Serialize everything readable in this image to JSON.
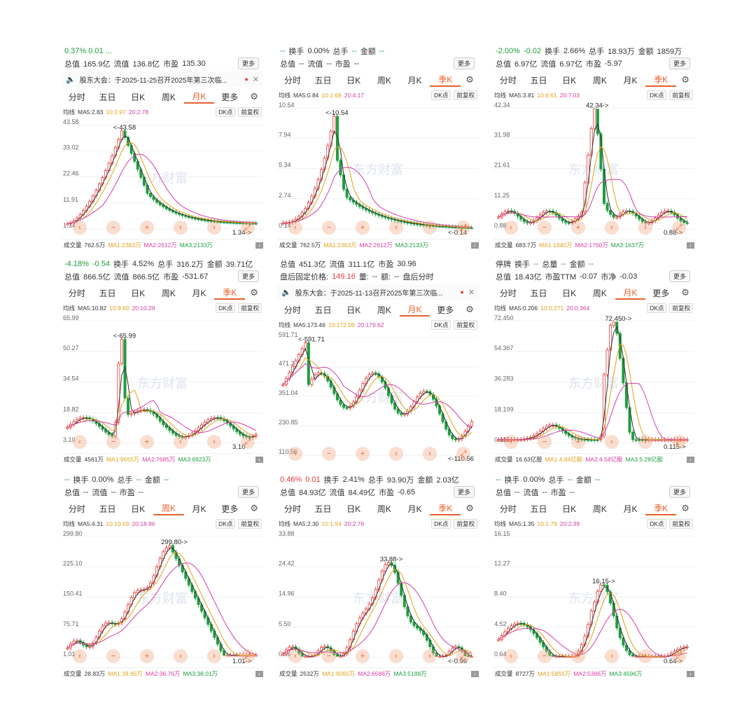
{
  "common": {
    "more": "更多",
    "dk": "DK点",
    "adjust": "前复权",
    "ma_label": "均线",
    "vol_label": "成交量",
    "watermark": "东方财富",
    "tabs": [
      "分时",
      "五日",
      "日K",
      "周K",
      "月K",
      "季K",
      "更多"
    ]
  },
  "panels": [
    {
      "row1": "0.37%  0.01  ...",
      "row2": [
        "总值",
        "165.9亿",
        "流值",
        "136.8亿",
        "市盈",
        "135.30"
      ],
      "notice": "股东大会：于2025-11-25召开2025年第三次临...",
      "tabs": [
        "分时",
        "五日",
        "日K",
        "周K",
        "月K",
        "更多"
      ],
      "active_tab": "月K",
      "ma": [
        "MA5:2.83",
        "10:2.97",
        "20:2.78"
      ],
      "y": [
        "43.58",
        "33.02",
        "22.46",
        "11.91",
        "1.34"
      ],
      "high": "<-43.58",
      "low": "1.34->",
      "vol": [
        "762.5万",
        "MA1:2363万",
        "MA2:2612万",
        "MA3:2133万"
      ],
      "vol_show": false
    },
    {
      "row1": [
        "--",
        "换手",
        "0.00%",
        "总手",
        "--",
        "金额",
        "--"
      ],
      "row2": [
        "总值",
        "--",
        "流值",
        "--",
        "市盈",
        "--"
      ],
      "tabs": [
        "分时",
        "五日",
        "日K",
        "周K",
        "月K",
        "季K"
      ],
      "active_tab": "季K",
      "ma": [
        "MA5:0.84",
        "10:1.69",
        "20:4.17"
      ],
      "y": [
        "10.54",
        "7.94",
        "5.34",
        "2.74",
        "0.14"
      ],
      "high": "<-10.54",
      "low": "<-0.14",
      "vol": [
        "762.5万",
        "MA1:2363万",
        "MA2:2612万",
        "MA3:2133万"
      ]
    },
    {
      "row1": [
        "-2.00%",
        "-0.02",
        "换手",
        "2.66%",
        "总手",
        "18.93万",
        "金额",
        "1859万"
      ],
      "row2": [
        "总值",
        "6.97亿",
        "流值",
        "6.97亿",
        "市盈",
        "-5.97"
      ],
      "tabs": [
        "分时",
        "五日",
        "日K",
        "周K",
        "月K",
        "季K"
      ],
      "active_tab": "季K",
      "ma": [
        "MA5:3.81",
        "10:6.61",
        "20:7.03"
      ],
      "y": [
        "42.34",
        "31.98",
        "21.61",
        "11.25",
        "0.88"
      ],
      "high": "42.34->",
      "low": "0.88->",
      "vol": [
        "683.7万",
        "MA1:1840万",
        "MA2:1760万",
        "MA3:1637万"
      ]
    },
    {
      "row1": [
        "-4.18%",
        "-0.54",
        "换手",
        "4.52%",
        "总手",
        "316.2万",
        "金额",
        "39.71亿"
      ],
      "row2": [
        "总值",
        "866.5亿",
        "流值",
        "866.5亿",
        "市盈",
        "-531.67"
      ],
      "tabs": [
        "分时",
        "五日",
        "日K",
        "周K",
        "月K",
        "季K"
      ],
      "active_tab": "季K",
      "ma": [
        "MA5:10.82",
        "10:9.69",
        "20:10.28"
      ],
      "y": [
        "65.99",
        "50.27",
        "34.54",
        "18.82",
        "3.10"
      ],
      "high": "<-65.99",
      "low": "3.10",
      "vol": [
        "4561万",
        "MA1:9655万",
        "MA2:7685万",
        "MA3:6923万"
      ]
    },
    {
      "row1": [
        "总值",
        "451.3亿",
        "流值",
        "311.1亿",
        "市盈",
        "30.96"
      ],
      "row2": [
        "盘后固定价格:",
        "149.16",
        "量:",
        "--",
        "额:",
        "--",
        "盘后分时"
      ],
      "notice": "股东大会：于2025-11-13召开2025年第三次临...",
      "tabs": [
        "分时",
        "五日",
        "日K",
        "周K",
        "月K",
        "更多"
      ],
      "active_tab": "月K",
      "ma": [
        "MA5:173.46",
        "10:172.09",
        "20:179.62"
      ],
      "y": [
        "591.71",
        "471.38",
        "351.04",
        "230.85",
        "110.56"
      ],
      "high": "<-591.71",
      "low": "<-110.56",
      "vol": []
    },
    {
      "row1": [
        "停牌",
        "换手",
        "--",
        "总量",
        "--",
        "金额",
        "--"
      ],
      "row2": [
        "总值",
        "18.43亿",
        "市盈TTM",
        "-0.07",
        "市净",
        "-0.03"
      ],
      "tabs": [
        "分时",
        "五日",
        "日K",
        "周K",
        "月K",
        "更多"
      ],
      "active_tab": "月K",
      "ma": [
        "MA5:0.206",
        "10:0.271",
        "20:0.364"
      ],
      "y": [
        "72.450",
        "54.367",
        "36.283",
        "18.199",
        "0.115"
      ],
      "high": "72.450->",
      "low": "0.115->",
      "vol": [
        "16.63亿股",
        "MA1:4.84亿股",
        "MA2:4.58亿股",
        "MA3:5.28亿股"
      ]
    },
    {
      "row1": [
        "--",
        "换手",
        "0.00%",
        "总手",
        "--",
        "金额",
        "--"
      ],
      "row2": [
        "总值",
        "--",
        "流值",
        "--",
        "市盈",
        "--"
      ],
      "tabs": [
        "分时",
        "五日",
        "日K",
        "周K",
        "月K",
        "更多"
      ],
      "active_tab": "周K",
      "ma": [
        "MA5:4.31",
        "10:10.59",
        "20:18.96"
      ],
      "y": [
        "299.80",
        "225.10",
        "150.41",
        "75.71",
        "1.01"
      ],
      "high": "299.80->",
      "low": "1.01->",
      "vol": [
        "28.83万",
        "MA1:39.95万",
        "MA2:36.76万",
        "MA3:38.01万"
      ]
    },
    {
      "row1": [
        "0.46%",
        "0.01",
        "换手",
        "2.41%",
        "总手",
        "93.90万",
        "金额",
        "2.03亿"
      ],
      "row2": [
        "总值",
        "84.93亿",
        "流值",
        "84.49亿",
        "市盈",
        "-0.65"
      ],
      "tabs": [
        "分时",
        "五日",
        "日K",
        "周K",
        "月K",
        "季K"
      ],
      "active_tab": "季K",
      "ma": [
        "MA5:2.30",
        "10:1.94",
        "20:2.76"
      ],
      "y": [
        "33.88",
        "24.42",
        "14.96",
        "5.50",
        "0.96"
      ],
      "high": "33.88->",
      "low": "<-0.96",
      "vol": [
        "2532万",
        "MA1:9065万",
        "MA2:6586万",
        "MA3:5188万"
      ]
    },
    {
      "row1": [
        "--",
        "换手",
        "0.00%",
        "总手",
        "--",
        "金额",
        "--"
      ],
      "row2": [
        "总值",
        "--",
        "流值",
        "--",
        "市盈",
        "--"
      ],
      "tabs": [
        "分时",
        "五日",
        "日K",
        "周K",
        "月K",
        "季K"
      ],
      "active_tab": "季K",
      "ma": [
        "MA5:1.35",
        "10:1.79",
        "20:2.39"
      ],
      "y": [
        "16.15",
        "12.27",
        "8.40",
        "4.52",
        "0.64"
      ],
      "high": "16.15->",
      "low": "0.64->",
      "vol": [
        "8727万",
        "MA1:5855万",
        "MA2:5386万",
        "MA3:4596万"
      ]
    }
  ]
}
